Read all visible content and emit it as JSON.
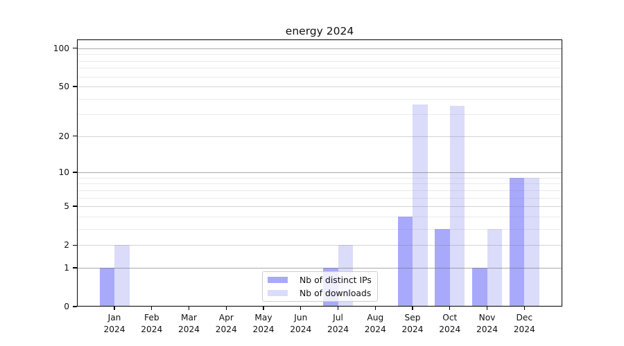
{
  "title": "energy 2024",
  "chart_data": {
    "type": "bar",
    "title": "energy 2024",
    "categories": [
      "Jan",
      "Feb",
      "Mar",
      "Apr",
      "May",
      "Jun",
      "Jul",
      "Aug",
      "Sep",
      "Oct",
      "Nov",
      "Dec"
    ],
    "year_label": "2024",
    "series": [
      {
        "name": "Nb of distinct IPs",
        "color": "#a8a9fb",
        "values": [
          1,
          0,
          0,
          0,
          0,
          0,
          1,
          0,
          4,
          3,
          1,
          9
        ]
      },
      {
        "name": "Nb of downloads",
        "color": "#dbdcfa",
        "values": [
          2,
          0,
          0,
          0,
          0,
          0,
          2,
          0,
          36,
          35,
          3,
          9
        ]
      }
    ],
    "xlabel": "",
    "ylabel": "",
    "yscale": "log1p",
    "ylim": [
      0,
      117
    ],
    "yticks": [
      0,
      1,
      2,
      5,
      10,
      20,
      50,
      100
    ],
    "grid": {
      "major": [
        1,
        10,
        100
      ],
      "mid": [
        2,
        5,
        20,
        50
      ],
      "minor": [
        3,
        4,
        6,
        7,
        8,
        9,
        30,
        40,
        60,
        70,
        80,
        90
      ]
    },
    "legend": {
      "position": "lower center",
      "entries": [
        "Nb of distinct IPs",
        "Nb of downloads"
      ]
    }
  }
}
